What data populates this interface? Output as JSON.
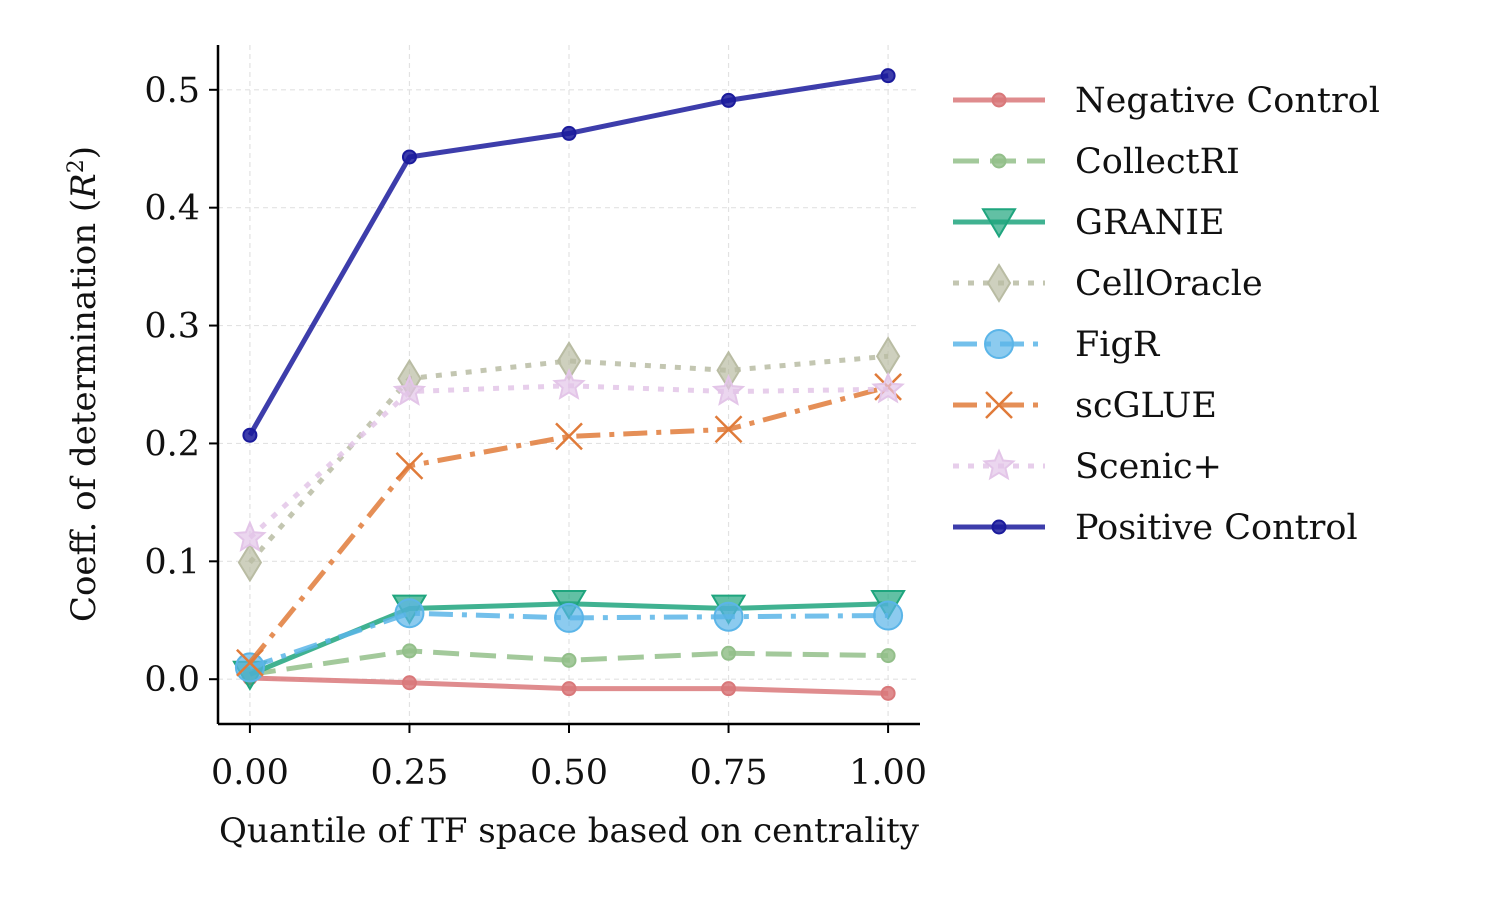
{
  "chart_data": {
    "type": "line",
    "title": "",
    "xlabel": "Quantile of TF space based on centrality",
    "ylabel": "Coeff. of determination (R²)",
    "ylabel_main": "Coeff. of determination (",
    "ylabel_var": "R",
    "ylabel_sup": "2",
    "ylabel_close": ")",
    "x": [
      0.0,
      0.25,
      0.5,
      0.75,
      1.0
    ],
    "x_tick_labels": [
      "0.00",
      "0.25",
      "0.50",
      "0.75",
      "1.00"
    ],
    "y_ticks": [
      0.0,
      0.1,
      0.2,
      0.3,
      0.4,
      0.5
    ],
    "y_tick_labels": [
      "0.0",
      "0.1",
      "0.2",
      "0.3",
      "0.4",
      "0.5"
    ],
    "xlim": [
      -0.05,
      1.05
    ],
    "ylim": [
      -0.038,
      0.538
    ],
    "grid": true,
    "legend_position": "outside-right",
    "series": [
      {
        "name": "Negative Control",
        "values": [
          0.001,
          -0.003,
          -0.008,
          -0.008,
          -0.012
        ],
        "color": "#d9787a",
        "dash": "solid",
        "marker": "circle-small"
      },
      {
        "name": "CollectRI",
        "values": [
          0.004,
          0.024,
          0.016,
          0.022,
          0.02
        ],
        "color": "#93bf8a",
        "dash": "dashed",
        "marker": "circle-small"
      },
      {
        "name": "GRANIE",
        "values": [
          0.004,
          0.06,
          0.064,
          0.06,
          0.064
        ],
        "color": "#1fa57e",
        "dash": "solid",
        "marker": "triangle-down"
      },
      {
        "name": "CellOracle",
        "values": [
          0.099,
          0.255,
          0.27,
          0.262,
          0.274
        ],
        "color": "#b9bca3",
        "dash": "dotted",
        "marker": "diamond"
      },
      {
        "name": "FigR",
        "values": [
          0.01,
          0.056,
          0.052,
          0.053,
          0.054
        ],
        "color": "#5bb5e8",
        "dash": "dashdot",
        "marker": "circle-large"
      },
      {
        "name": "scGLUE",
        "values": [
          0.014,
          0.181,
          0.206,
          0.212,
          0.248
        ],
        "color": "#e07b3a",
        "dash": "dashdot",
        "marker": "x"
      },
      {
        "name": "Scenic+",
        "values": [
          0.12,
          0.244,
          0.249,
          0.244,
          0.246
        ],
        "color": "#e3c5e8",
        "dash": "dotted",
        "marker": "star"
      },
      {
        "name": "Positive Control",
        "values": [
          0.207,
          0.443,
          0.463,
          0.491,
          0.512
        ],
        "color": "#1b1b9c",
        "dash": "solid",
        "marker": "circle-small"
      }
    ]
  }
}
